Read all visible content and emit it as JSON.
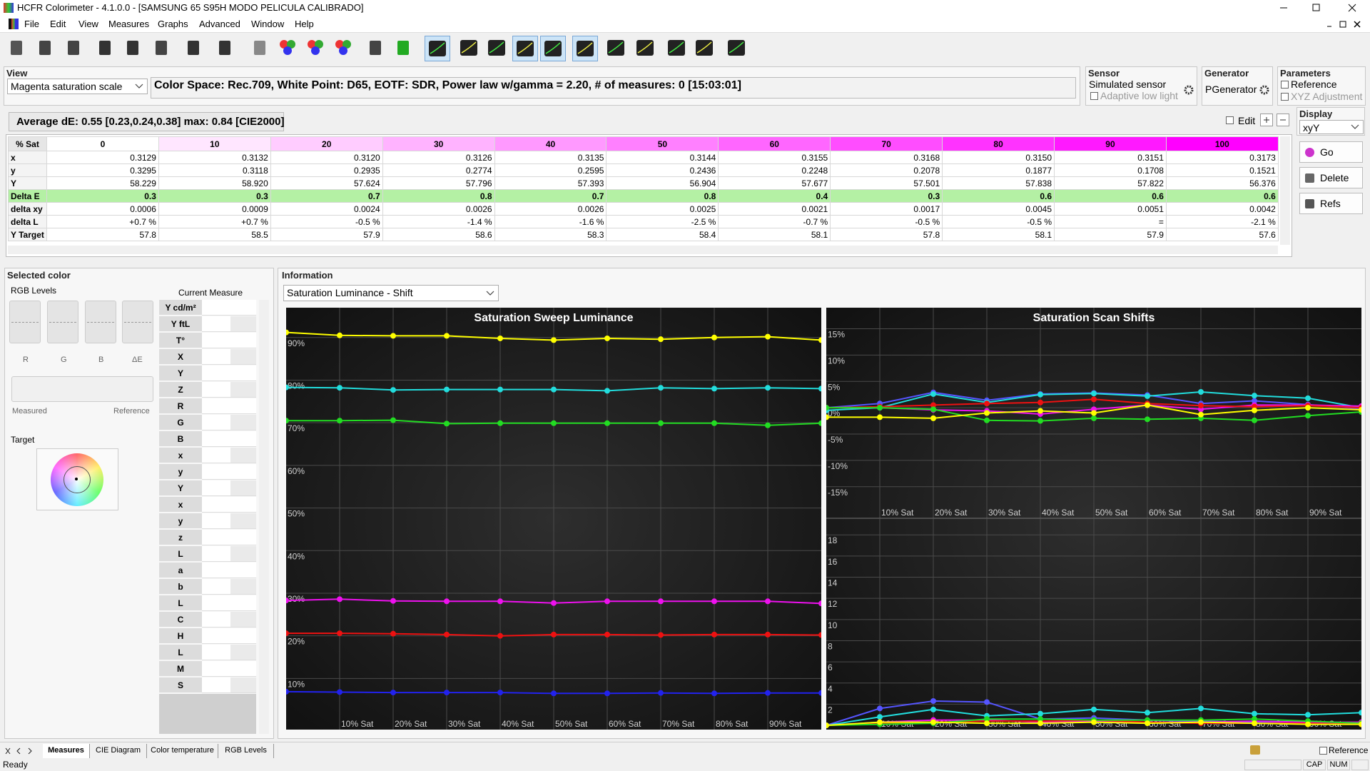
{
  "title_bar": {
    "title": "HCFR Colorimeter - 4.1.0.0 - [SAMSUNG 65 S95H MODO PELICULA CALIBRADO]"
  },
  "menu": [
    "File",
    "Edit",
    "View",
    "Measures",
    "Graphs",
    "Advanced",
    "Window",
    "Help"
  ],
  "view": {
    "label": "View",
    "scale": "Magenta saturation scale",
    "info": "Color Space: Rec.709, White Point: D65, EOTF:  SDR, Power law w/gamma = 2.20, # of measures: 0 [15:03:01]"
  },
  "sensor": {
    "label": "Sensor",
    "name": "Simulated sensor",
    "option": "Adaptive low light"
  },
  "generator": {
    "label": "Generator",
    "name": "PGenerator"
  },
  "parameters": {
    "label": "Parameters",
    "options": [
      "Reference",
      "XYZ Adjustment"
    ]
  },
  "summary": "Average dE: 0.55 [0.23,0.24,0.38] max: 0.84 [CIE2000]",
  "edit": "Edit",
  "display": {
    "label": "Display",
    "mode": "xyY"
  },
  "actions": [
    "Go",
    "Delete",
    "Refs"
  ],
  "table": {
    "header": [
      "% Sat",
      "0",
      "10",
      "20",
      "30",
      "40",
      "50",
      "60",
      "70",
      "80",
      "90",
      "100"
    ],
    "rows": [
      [
        "x",
        "0.3129",
        "0.3132",
        "0.3120",
        "0.3126",
        "0.3135",
        "0.3144",
        "0.3155",
        "0.3168",
        "0.3150",
        "0.3151",
        "0.3173"
      ],
      [
        "y",
        "0.3295",
        "0.3118",
        "0.2935",
        "0.2774",
        "0.2595",
        "0.2436",
        "0.2248",
        "0.2078",
        "0.1877",
        "0.1708",
        "0.1521"
      ],
      [
        "Y",
        "58.229",
        "58.920",
        "57.624",
        "57.796",
        "57.393",
        "56.904",
        "57.677",
        "57.501",
        "57.838",
        "57.822",
        "56.376"
      ],
      [
        "Delta E",
        "0.3",
        "0.3",
        "0.7",
        "0.8",
        "0.7",
        "0.8",
        "0.4",
        "0.3",
        "0.6",
        "0.6",
        "0.6"
      ],
      [
        "delta xy",
        "0.0006",
        "0.0009",
        "0.0024",
        "0.0026",
        "0.0026",
        "0.0025",
        "0.0021",
        "0.0017",
        "0.0045",
        "0.0051",
        "0.0042"
      ],
      [
        "delta L",
        "+0.7 %",
        "+0.7 %",
        "-0.5 %",
        "-1.4 %",
        "-1.6 %",
        "-2.5 %",
        "-0.7 %",
        "-0.5 %",
        "-0.5 %",
        "=",
        "-2.1 %"
      ],
      [
        "Y Target",
        "57.8",
        "58.5",
        "57.9",
        "58.6",
        "58.3",
        "58.4",
        "58.1",
        "57.8",
        "58.1",
        "57.9",
        "57.6"
      ]
    ]
  },
  "selected_color": {
    "label": "Selected color",
    "rgb_levels": "RGB Levels",
    "channels": [
      "R",
      "G",
      "B",
      "ΔE"
    ],
    "measured": "Measured",
    "reference": "Reference",
    "target": "Target",
    "current_measure": "Current Measure",
    "fields": [
      "Y cd/m²",
      "Y ftL",
      "T°",
      "X",
      "Y",
      "Z",
      "R",
      "G",
      "B",
      "x",
      "y",
      "Y",
      "x",
      "y",
      "z",
      "L",
      "a",
      "b",
      "L",
      "C",
      "H",
      "L",
      "M",
      "S"
    ]
  },
  "information": {
    "label": "Information",
    "view": "Saturation Luminance - Shift"
  },
  "chart_data": [
    {
      "type": "line",
      "title": "Saturation Sweep Luminance",
      "categories": [
        null,
        "10% Sat",
        "20% Sat",
        "30% Sat",
        "40% Sat",
        "50% Sat",
        "60% Sat",
        "70% Sat",
        "80% Sat",
        "90% Sat",
        null
      ],
      "ylim": [
        -2,
        97
      ],
      "yticks": [
        {
          "value": 10,
          "label": "10%"
        },
        {
          "value": 20,
          "label": "20%"
        },
        {
          "value": 30,
          "label": "30%"
        },
        {
          "value": 40,
          "label": "40%"
        },
        {
          "value": 50,
          "label": "50%"
        },
        {
          "value": 60,
          "label": "60%"
        },
        {
          "value": 70,
          "label": "70%"
        },
        {
          "value": 80,
          "label": "80%"
        },
        {
          "value": 90,
          "label": "90%"
        }
      ],
      "grid": true,
      "series": [
        {
          "color": "#ffff00",
          "values": [
            91.2,
            90.5,
            90.4,
            90.4,
            89.8,
            89.4,
            89.8,
            89.6,
            90.0,
            90.2,
            89.4
          ]
        },
        {
          "color": "#22dddd",
          "values": [
            78.3,
            78.2,
            77.7,
            77.8,
            77.8,
            77.8,
            77.5,
            78.2,
            78.0,
            78.2,
            78.0
          ]
        },
        {
          "color": "#22dd22",
          "values": [
            70.5,
            70.5,
            70.6,
            69.8,
            69.9,
            69.9,
            69.9,
            69.9,
            69.9,
            69.4,
            69.9
          ]
        },
        {
          "color": "#ee11ee",
          "values": [
            28.3,
            28.6,
            28.2,
            28.1,
            28.1,
            27.7,
            28.1,
            28.1,
            28.1,
            28.1,
            27.6
          ]
        },
        {
          "color": "#ee1111",
          "values": [
            20.6,
            20.6,
            20.5,
            20.3,
            20.0,
            20.3,
            20.3,
            20.2,
            20.3,
            20.3,
            20.2
          ]
        },
        {
          "color": "#2222ee",
          "values": [
            6.9,
            6.8,
            6.7,
            6.7,
            6.7,
            6.5,
            6.5,
            6.6,
            6.5,
            6.6,
            6.6
          ]
        }
      ]
    },
    {
      "type": "line",
      "title": "Saturation Scan Shifts",
      "categories": [
        null,
        "10% Sat",
        "20% Sat",
        "30% Sat",
        "40% Sat",
        "50% Sat",
        "60% Sat",
        "70% Sat",
        "80% Sat",
        "90% Sat",
        null
      ],
      "ylim": [
        -21,
        19
      ],
      "yticks": [
        {
          "value": 15,
          "label": "15%"
        },
        {
          "value": 10,
          "label": "10%"
        },
        {
          "value": 5,
          "label": "5%"
        },
        {
          "value": 0,
          "label": "0%"
        },
        {
          "value": -5,
          "label": "-5%"
        },
        {
          "value": -10,
          "label": "-10%"
        },
        {
          "value": -15,
          "label": "-15%"
        }
      ],
      "grid": true,
      "series": [
        {
          "color": "#5555ff",
          "values": [
            0,
            0.8,
            2.9,
            1.4,
            2.6,
            2.8,
            2.4,
            0.8,
            1.3,
            0.6,
            -0.2
          ]
        },
        {
          "color": "#22dddd",
          "values": [
            -0.5,
            0,
            2.6,
            1.0,
            2.5,
            2.7,
            2.2,
            3.0,
            2.3,
            1.8,
            0
          ]
        },
        {
          "color": "#ee11ee",
          "values": [
            0,
            0,
            -0.4,
            -0.6,
            -1.2,
            -0.3,
            0.5,
            -0.3,
            0.5,
            0.5,
            0.3
          ]
        },
        {
          "color": "#ee1111",
          "values": [
            0,
            0.2,
            0.5,
            0.8,
            1.0,
            1.6,
            0.8,
            0.4,
            0.2,
            0.4,
            0
          ]
        },
        {
          "color": "#22dd22",
          "values": [
            0,
            0,
            -0.3,
            -2.4,
            -2.5,
            -2.0,
            -2.2,
            -2.0,
            -2.4,
            -1.5,
            -0.8
          ]
        },
        {
          "color": "#ffff00",
          "values": [
            -1.8,
            -1.8,
            -2.0,
            -1.0,
            -0.6,
            -1.0,
            0.5,
            -1.3,
            -0.5,
            0,
            -0.4
          ]
        }
      ]
    },
    {
      "type": "line",
      "categories": [
        null,
        "10% Sat",
        "20% Sat",
        "30% Sat",
        "40% Sat",
        "50% Sat",
        "60% Sat",
        "70% Sat",
        "80% Sat",
        "90% Sat",
        null
      ],
      "ylim": [
        -0.4,
        19.5
      ],
      "yticks": [
        2,
        4,
        6,
        8,
        10,
        12,
        14,
        16,
        18
      ],
      "grid": true,
      "series": [
        {
          "color": "#5555ff",
          "values": [
            0,
            1.6,
            2.3,
            2.2,
            0.6,
            0.7,
            0.5,
            0.4,
            0.3,
            0.3,
            0.1
          ]
        },
        {
          "color": "#22dddd",
          "values": [
            0,
            0.8,
            1.5,
            0.9,
            1.1,
            1.5,
            1.2,
            1.6,
            1.1,
            1.0,
            1.2
          ]
        },
        {
          "color": "#ee11ee",
          "values": [
            0,
            0.3,
            0.5,
            0.5,
            0.3,
            0.4,
            0.3,
            0.3,
            0.4,
            0.3,
            0.3
          ]
        },
        {
          "color": "#ee1111",
          "values": [
            0,
            0.2,
            0.3,
            0.4,
            0.4,
            0.5,
            0.3,
            0.2,
            0.2,
            0.2,
            0.1
          ]
        },
        {
          "color": "#22dd22",
          "values": [
            0,
            0.1,
            0.2,
            0.6,
            0.6,
            0.5,
            0.5,
            0.5,
            0.6,
            0.4,
            0.2
          ]
        },
        {
          "color": "#ffff00",
          "values": [
            0,
            0.3,
            0.3,
            0.2,
            0.2,
            0.3,
            0.2,
            0.3,
            0.2,
            0.1,
            0.1
          ]
        }
      ]
    }
  ],
  "tabs": [
    "Measures",
    "CIE Diagram",
    "Color temperature",
    "RGB Levels"
  ],
  "status": {
    "text": "Ready",
    "keys": [
      "CAP",
      "NUM"
    ],
    "reference": "Reference"
  }
}
